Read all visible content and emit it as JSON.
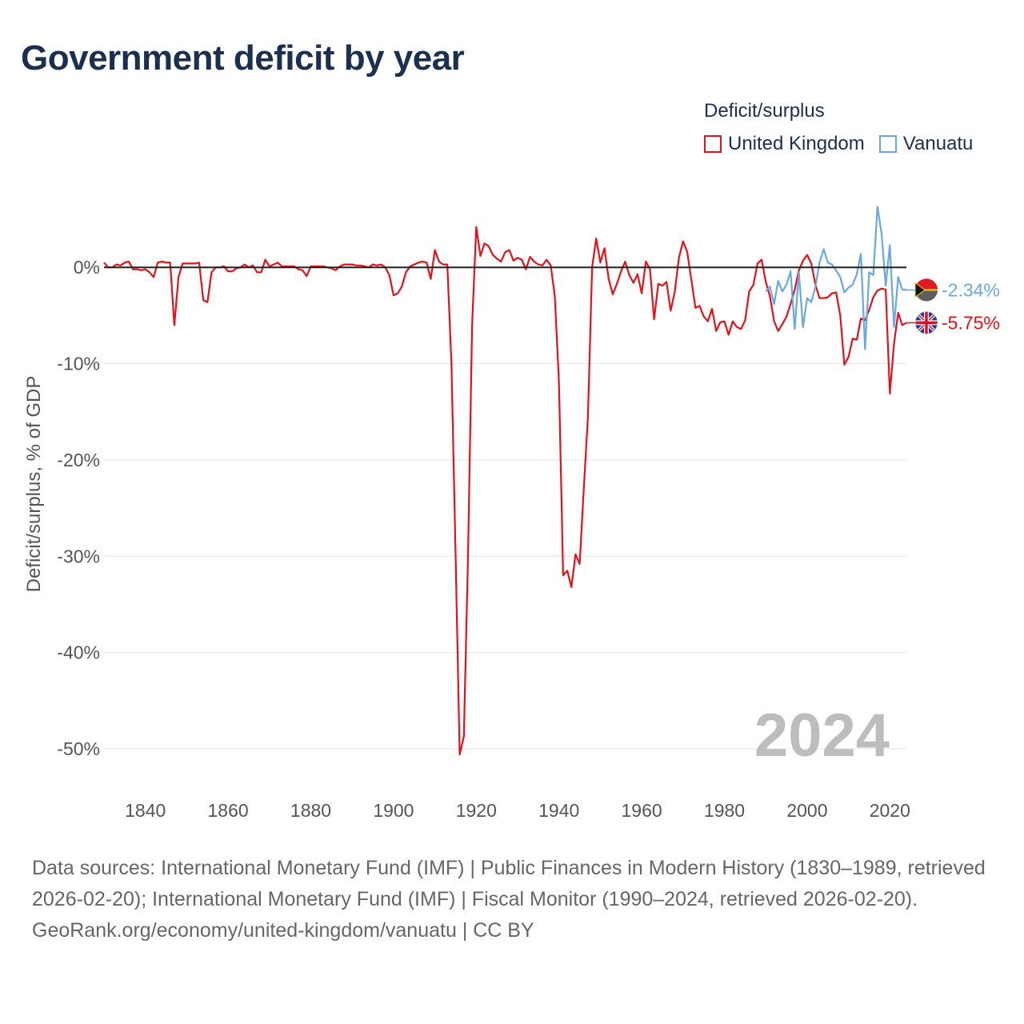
{
  "title": "Government deficit by year",
  "legend": {
    "title": "Deficit/surplus",
    "items": [
      {
        "label": "United Kingdom",
        "color": "#e8111a"
      },
      {
        "label": "Vanuatu",
        "color": "#6aa8e0"
      }
    ]
  },
  "footer": {
    "sources": "Data sources: International Monetary Fund (IMF) | Public Finances in Modern History (1830–1989, retrieved 2026-02-20); International Monetary Fund (IMF) | Fiscal Monitor (1990–2024, retrieved 2026-02-20).",
    "credit": "GeoRank.org/economy/united-kingdom/vanuatu | CC BY"
  },
  "chart_data": {
    "type": "line",
    "title": "Government deficit by year",
    "ylabel": "Deficit/surplus, % of GDP",
    "xlabel": "",
    "xlim": [
      1830,
      2024
    ],
    "ylim": [
      -52,
      7
    ],
    "x_ticks": [
      1840,
      1860,
      1880,
      1900,
      1920,
      1940,
      1960,
      1980,
      2000,
      2020
    ],
    "y_ticks": [
      0,
      -10,
      -20,
      -30,
      -40,
      -50
    ],
    "y_tick_labels": [
      "0%",
      "-10%",
      "-20%",
      "-30%",
      "-40%",
      "-50%"
    ],
    "year_label": "2024",
    "series": [
      {
        "name": "United Kingdom",
        "color": "#e8111a",
        "end_label": "-5.75%",
        "points": [
          [
            1830,
            0.5
          ],
          [
            1831,
            0
          ],
          [
            1832,
            0
          ],
          [
            1833,
            0.3
          ],
          [
            1834,
            0.2
          ],
          [
            1835,
            0.5
          ],
          [
            1836,
            0.6
          ],
          [
            1837,
            -0.2
          ],
          [
            1838,
            -0.2
          ],
          [
            1839,
            -0.3
          ],
          [
            1840,
            -0.2
          ],
          [
            1841,
            -0.5
          ],
          [
            1842,
            -1.0
          ],
          [
            1843,
            0.5
          ],
          [
            1844,
            0.6
          ],
          [
            1845,
            0.5
          ],
          [
            1846,
            0.5
          ],
          [
            1847,
            -6.0
          ],
          [
            1848,
            -1.0
          ],
          [
            1849,
            0.4
          ],
          [
            1850,
            0.4
          ],
          [
            1851,
            0.4
          ],
          [
            1852,
            0.4
          ],
          [
            1853,
            0.5
          ],
          [
            1854,
            -3.4
          ],
          [
            1855,
            -3.6
          ],
          [
            1856,
            -0.5
          ],
          [
            1857,
            0
          ],
          [
            1858,
            0
          ],
          [
            1859,
            0.1
          ],
          [
            1860,
            -0.4
          ],
          [
            1861,
            -0.4
          ],
          [
            1862,
            -0.1
          ],
          [
            1863,
            0
          ],
          [
            1864,
            0.3
          ],
          [
            1865,
            0
          ],
          [
            1866,
            0.2
          ],
          [
            1867,
            -0.5
          ],
          [
            1868,
            -0.5
          ],
          [
            1869,
            0.8
          ],
          [
            1870,
            0.1
          ],
          [
            1871,
            0.3
          ],
          [
            1872,
            0.5
          ],
          [
            1873,
            0.1
          ],
          [
            1874,
            0.1
          ],
          [
            1875,
            0.1
          ],
          [
            1876,
            0.1
          ],
          [
            1877,
            -0.2
          ],
          [
            1878,
            -0.3
          ],
          [
            1879,
            -0.9
          ],
          [
            1880,
            0.1
          ],
          [
            1881,
            0.1
          ],
          [
            1882,
            0.1
          ],
          [
            1883,
            0.1
          ],
          [
            1884,
            0
          ],
          [
            1885,
            -0.1
          ],
          [
            1886,
            -0.3
          ],
          [
            1887,
            0.1
          ],
          [
            1888,
            0.3
          ],
          [
            1889,
            0.3
          ],
          [
            1890,
            0.3
          ],
          [
            1891,
            0.2
          ],
          [
            1892,
            0.2
          ],
          [
            1893,
            0.1
          ],
          [
            1894,
            0
          ],
          [
            1895,
            0.3
          ],
          [
            1896,
            0.2
          ],
          [
            1897,
            0.3
          ],
          [
            1898,
            0
          ],
          [
            1899,
            -0.8
          ],
          [
            1900,
            -2.9
          ],
          [
            1901,
            -2.7
          ],
          [
            1902,
            -2
          ],
          [
            1903,
            -0.5
          ],
          [
            1904,
            0.1
          ],
          [
            1905,
            0.3
          ],
          [
            1906,
            0.5
          ],
          [
            1907,
            0.6
          ],
          [
            1908,
            0.5
          ],
          [
            1909,
            -1.2
          ],
          [
            1910,
            1.8
          ],
          [
            1911,
            0.6
          ],
          [
            1912,
            0.3
          ],
          [
            1913,
            0.3
          ],
          [
            1914,
            -10
          ],
          [
            1915,
            -30
          ],
          [
            1916,
            -50.6
          ],
          [
            1917,
            -48.7
          ],
          [
            1918,
            -30
          ],
          [
            1919,
            -6
          ],
          [
            1920,
            4.2
          ],
          [
            1921,
            1.2
          ],
          [
            1922,
            2.5
          ],
          [
            1923,
            2.2
          ],
          [
            1924,
            1.3
          ],
          [
            1925,
            0.9
          ],
          [
            1926,
            0.6
          ],
          [
            1927,
            1.6
          ],
          [
            1928,
            1.8
          ],
          [
            1929,
            0.7
          ],
          [
            1930,
            1.0
          ],
          [
            1931,
            0.8
          ],
          [
            1932,
            -0.2
          ],
          [
            1933,
            1.1
          ],
          [
            1934,
            0.6
          ],
          [
            1935,
            0.3
          ],
          [
            1936,
            0.2
          ],
          [
            1937,
            0.8
          ],
          [
            1938,
            0.2
          ],
          [
            1939,
            -3.0
          ],
          [
            1940,
            -12
          ],
          [
            1941,
            -32
          ],
          [
            1942,
            -31.5
          ],
          [
            1943,
            -33.2
          ],
          [
            1944,
            -29.8
          ],
          [
            1945,
            -30.8
          ],
          [
            1946,
            -23
          ],
          [
            1947,
            -15.5
          ],
          [
            1948,
            0
          ],
          [
            1949,
            3
          ],
          [
            1950,
            0.5
          ],
          [
            1951,
            2.0
          ],
          [
            1952,
            -1.2
          ],
          [
            1953,
            -2.8
          ],
          [
            1954,
            -1.7
          ],
          [
            1955,
            -0.4
          ],
          [
            1956,
            0.6
          ],
          [
            1957,
            -0.8
          ],
          [
            1958,
            -1.6
          ],
          [
            1959,
            -0.7
          ],
          [
            1960,
            -2.7
          ],
          [
            1961,
            0.6
          ],
          [
            1962,
            -0.2
          ],
          [
            1963,
            -5.4
          ],
          [
            1964,
            -1.7
          ],
          [
            1965,
            -1.9
          ],
          [
            1966,
            -1.5
          ],
          [
            1967,
            -4.5
          ],
          [
            1968,
            -2.5
          ],
          [
            1969,
            1
          ],
          [
            1970,
            2.7
          ],
          [
            1971,
            1.6
          ],
          [
            1972,
            -1.3
          ],
          [
            1973,
            -4.2
          ],
          [
            1974,
            -4
          ],
          [
            1975,
            -5.1
          ],
          [
            1976,
            -5.6
          ],
          [
            1977,
            -4.3
          ],
          [
            1978,
            -6.6
          ],
          [
            1979,
            -5.7
          ],
          [
            1980,
            -5.6
          ],
          [
            1981,
            -7
          ],
          [
            1982,
            -5.6
          ],
          [
            1983,
            -6.2
          ],
          [
            1984,
            -6.4
          ],
          [
            1985,
            -5.5
          ],
          [
            1986,
            -2.5
          ],
          [
            1987,
            -1.8
          ],
          [
            1988,
            0.4
          ],
          [
            1989,
            0.8
          ],
          [
            1990,
            -1.5
          ],
          [
            1991,
            -3
          ],
          [
            1992,
            -5.6
          ],
          [
            1993,
            -6.6
          ],
          [
            1994,
            -5.9
          ],
          [
            1995,
            -5.1
          ],
          [
            1996,
            -3.8
          ],
          [
            1997,
            -2.3
          ],
          [
            1998,
            -0.3
          ],
          [
            1999,
            0.7
          ],
          [
            2000,
            1.3
          ],
          [
            2001,
            0.4
          ],
          [
            2002,
            -1.8
          ],
          [
            2003,
            -3.2
          ],
          [
            2004,
            -3.2
          ],
          [
            2005,
            -3.1
          ],
          [
            2006,
            -2.7
          ],
          [
            2007,
            -2.6
          ],
          [
            2008,
            -5.0
          ],
          [
            2009,
            -10.1
          ],
          [
            2010,
            -9.3
          ],
          [
            2011,
            -7.4
          ],
          [
            2012,
            -7.5
          ],
          [
            2013,
            -5.3
          ],
          [
            2014,
            -5.5
          ],
          [
            2015,
            -4.4
          ],
          [
            2016,
            -3.1
          ],
          [
            2017,
            -2.4
          ],
          [
            2018,
            -2.2
          ],
          [
            2019,
            -2.3
          ],
          [
            2020,
            -13.1
          ],
          [
            2021,
            -7.9
          ],
          [
            2022,
            -4.7
          ],
          [
            2023,
            -6.0
          ],
          [
            2024,
            -5.75
          ]
        ]
      },
      {
        "name": "Vanuatu",
        "color": "#6aa8e0",
        "end_label": "-2.34%",
        "points": [
          [
            1990,
            -2.5
          ],
          [
            1991,
            -2.0
          ],
          [
            1992,
            -3.8
          ],
          [
            1993,
            -1.4
          ],
          [
            1994,
            -2.5
          ],
          [
            1995,
            -1.8
          ],
          [
            1996,
            -0.4
          ],
          [
            1997,
            -6.4
          ],
          [
            1998,
            -0.5
          ],
          [
            1999,
            -6.2
          ],
          [
            2000,
            -3.2
          ],
          [
            2001,
            -3.6
          ],
          [
            2002,
            -2.0
          ],
          [
            2003,
            0.5
          ],
          [
            2004,
            1.9
          ],
          [
            2005,
            0.5
          ],
          [
            2006,
            0.3
          ],
          [
            2007,
            -0.3
          ],
          [
            2008,
            -1.0
          ],
          [
            2009,
            -2.6
          ],
          [
            2010,
            -2.1
          ],
          [
            2011,
            -1.8
          ],
          [
            2012,
            -0.7
          ],
          [
            2013,
            1.4
          ],
          [
            2014,
            -8.5
          ],
          [
            2015,
            -0.5
          ],
          [
            2016,
            -0.8
          ],
          [
            2017,
            6.3
          ],
          [
            2018,
            3.5
          ],
          [
            2019,
            -1.9
          ],
          [
            2020,
            2.3
          ],
          [
            2021,
            -6.2
          ],
          [
            2022,
            -1.0
          ],
          [
            2023,
            -2.3
          ],
          [
            2024,
            -2.34
          ]
        ]
      }
    ]
  }
}
